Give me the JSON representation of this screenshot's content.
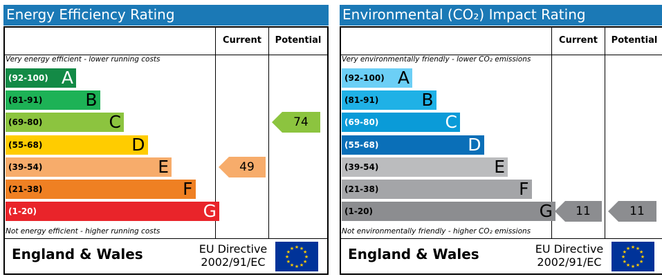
{
  "chart_data": [
    {
      "type": "bar",
      "title": "Energy Efficiency Rating",
      "header_color": "#1b79b6",
      "columns": [
        "Current",
        "Potential"
      ],
      "top_note": "Very energy efficient - lower running costs",
      "bottom_note": "Not energy efficient - higher running costs",
      "bands": [
        {
          "range": "(92-100)",
          "letter": "A",
          "color": "#138a46",
          "level": 1
        },
        {
          "range": "(81-91)",
          "letter": "B",
          "color": "#1db256",
          "level": 2
        },
        {
          "range": "(69-80)",
          "letter": "C",
          "color": "#8cc43f",
          "level": 3
        },
        {
          "range": "(55-68)",
          "letter": "D",
          "color": "#ffcc00",
          "level": 4
        },
        {
          "range": "(39-54)",
          "letter": "E",
          "color": "#f7ac6b",
          "level": 5
        },
        {
          "range": "(21-38)",
          "letter": "F",
          "color": "#ef8023",
          "level": 6
        },
        {
          "range": "(1-20)",
          "letter": "G",
          "color": "#e9242a",
          "level": 7
        }
      ],
      "ratings": [
        {
          "column": "Current",
          "value": 49,
          "band": "E",
          "color": "#f7ac6b"
        },
        {
          "column": "Potential",
          "value": 74,
          "band": "C",
          "color": "#8cc43f"
        }
      ],
      "footer": {
        "region": "England & Wales",
        "directive_line1": "EU Directive",
        "directive_line2": "2002/91/EC"
      }
    },
    {
      "type": "bar",
      "title": "Environmental (CO₂) Impact Rating",
      "header_color": "#1b79b6",
      "columns": [
        "Current",
        "Potential"
      ],
      "top_note": "Very environmentally friendly - lower CO₂ emissions",
      "bottom_note": "Not environmentally friendly - higher CO₂ emissions",
      "bands": [
        {
          "range": "(92-100)",
          "letter": "A",
          "color": "#6ccff6",
          "level": 1
        },
        {
          "range": "(81-91)",
          "letter": "B",
          "color": "#1fb1e6",
          "level": 2
        },
        {
          "range": "(69-80)",
          "letter": "C",
          "color": "#0a9bd8",
          "level": 3
        },
        {
          "range": "(55-68)",
          "letter": "D",
          "color": "#0a6fb8",
          "level": 4
        },
        {
          "range": "(39-54)",
          "letter": "E",
          "color": "#bbbcbe",
          "level": 5
        },
        {
          "range": "(21-38)",
          "letter": "F",
          "color": "#a4a5a8",
          "level": 6
        },
        {
          "range": "(1-20)",
          "letter": "G",
          "color": "#8c8d90",
          "level": 7
        }
      ],
      "ratings": [
        {
          "column": "Current",
          "value": 11,
          "band": "G",
          "color": "#8c8d90"
        },
        {
          "column": "Potential",
          "value": 11,
          "band": "G",
          "color": "#8c8d90"
        }
      ],
      "footer": {
        "region": "England & Wales",
        "directive_line1": "EU Directive",
        "directive_line2": "2002/91/EC"
      }
    }
  ]
}
